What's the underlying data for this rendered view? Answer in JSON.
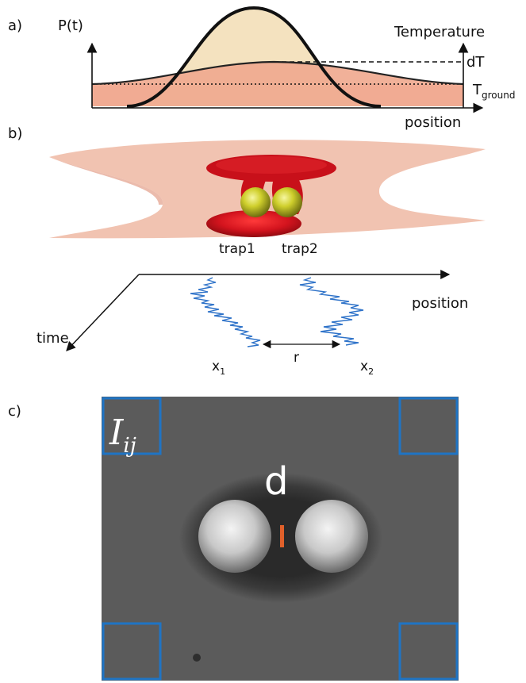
{
  "panel_a": {
    "label": "a)",
    "y_axis_label": "P(t)",
    "right_axis_label": "Temperature",
    "dT_label": "dT",
    "ground_label_main": "T",
    "ground_label_sub": "ground",
    "x_axis_label": "position"
  },
  "panel_b": {
    "label": "b)",
    "trap1_label": "trap1",
    "trap2_label": "trap2",
    "position_label": "position",
    "time_label": "time",
    "x1_main": "x",
    "x1_sub": "1",
    "x2_main": "x",
    "x2_sub": "2",
    "r_label": "r"
  },
  "panel_c": {
    "label": "c)",
    "intensity_main": "I",
    "intensity_sub": "ij",
    "distance_label": "d"
  },
  "colors": {
    "gaussian_fill": "#f4e2bf",
    "temperature_fill": "#efa98e",
    "ground_fill": "#f8c2c4",
    "trap_red": "#c8101a",
    "particle_yellow": "#c9c92a",
    "membrane": "#efb8a3",
    "trajectory_blue": "#2f73c9",
    "roi_blue": "#1f74c4",
    "marker_orange": "#e0602a",
    "camera_gray": "#5b5b5b"
  }
}
